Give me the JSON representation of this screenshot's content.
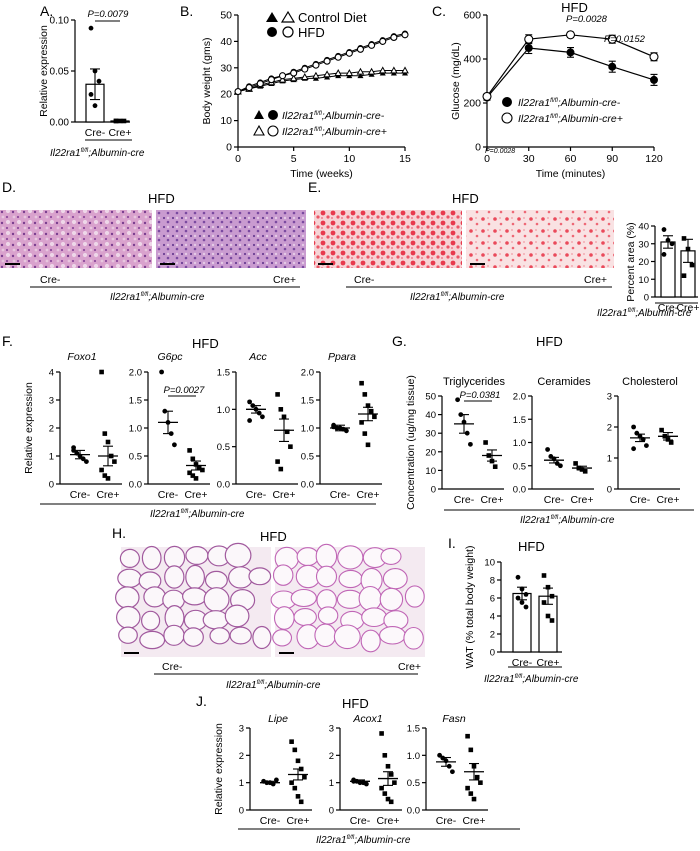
{
  "panel_letters": {
    "A": "A.",
    "B": "B.",
    "C": "C.",
    "D": "D.",
    "E": "E.",
    "F": "F.",
    "G": "G.",
    "H": "H.",
    "I": "I.",
    "J": "J."
  },
  "genotype_label": "Il22ra1",
  "genotype_sup": "fl/fl",
  "genotype_suffix": ";Albumin-cre",
  "genotype_cre_minus": ";Albumin-cre-",
  "genotype_cre_plus": ";Albumin-cre+",
  "hfd": "HFD",
  "cre_minus": "Cre-",
  "cre_plus": "Cre+",
  "chart_data": [
    {
      "id": "A",
      "type": "bar",
      "ylabel": "Relative expression",
      "ylim": [
        0,
        0.1
      ],
      "yticks": [
        "0.00",
        "0.05",
        "0.10"
      ],
      "categories": [
        "Cre-",
        "Cre+"
      ],
      "values": [
        0.037,
        0.001
      ],
      "sem": [
        0.015,
        0.0005
      ],
      "points": [
        [
          0.092,
          0.05,
          0.04,
          0.027,
          0.016
        ],
        [
          0.001,
          0.001,
          0.001,
          0.001
        ]
      ],
      "annotation": "P=0.0079"
    },
    {
      "id": "B",
      "type": "line",
      "xlabel": "Time (weeks)",
      "ylabel": "Body weight (gms)",
      "xlim": [
        0,
        15
      ],
      "ylim": [
        0,
        50
      ],
      "xticks": [
        "0",
        "5",
        "10",
        "15"
      ],
      "yticks": [
        "0",
        "10",
        "20",
        "30",
        "40",
        "50"
      ],
      "legend": [
        "Control Diet",
        "HFD"
      ],
      "series": [
        {
          "marker": "triangle-filled",
          "x": [
            0,
            1,
            2,
            3,
            4,
            5,
            6,
            7,
            8,
            9,
            10,
            11,
            12,
            13,
            14,
            15
          ],
          "y": [
            21,
            22,
            23,
            24,
            25,
            25.5,
            26,
            26,
            26.5,
            27,
            27,
            27,
            27.5,
            28,
            28,
            28
          ]
        },
        {
          "marker": "triangle-open",
          "x": [
            0,
            1,
            2,
            3,
            4,
            5,
            6,
            7,
            8,
            9,
            10,
            11,
            12,
            13,
            14,
            15
          ],
          "y": [
            21,
            22,
            23.5,
            24.5,
            25.5,
            26,
            26.5,
            27,
            27.5,
            28,
            28,
            28.5,
            28.5,
            29,
            29,
            29
          ]
        },
        {
          "marker": "circle-filled",
          "x": [
            0,
            1,
            2,
            3,
            4,
            5,
            6,
            7,
            8,
            9,
            10,
            11,
            12,
            13,
            14,
            15
          ],
          "y": [
            21,
            23,
            24.5,
            26,
            27,
            28.5,
            30,
            31.5,
            33,
            34.5,
            36,
            37.5,
            39,
            40.5,
            42,
            43
          ]
        },
        {
          "marker": "circle-open",
          "x": [
            0,
            1,
            2,
            3,
            4,
            5,
            6,
            7,
            8,
            9,
            10,
            11,
            12,
            13,
            14,
            15
          ],
          "y": [
            21,
            22.5,
            24,
            25.5,
            27,
            28,
            29.5,
            31,
            32.5,
            34,
            35.5,
            37,
            38.5,
            40,
            41.5,
            42.5
          ]
        }
      ]
    },
    {
      "id": "C",
      "type": "line",
      "title": "HFD",
      "xlabel": "Time (minutes)",
      "ylabel": "Glucose (mg/dL)",
      "xlim": [
        0,
        120
      ],
      "ylim": [
        0,
        600
      ],
      "xticks": [
        "0",
        "30",
        "60",
        "90",
        "120"
      ],
      "yticks": [
        "0",
        "200",
        "400",
        "600"
      ],
      "series": [
        {
          "name": "Cre-",
          "marker": "circle-filled",
          "x": [
            0,
            30,
            60,
            90,
            120
          ],
          "y": [
            225,
            450,
            430,
            365,
            305
          ],
          "sem": [
            12,
            25,
            22,
            25,
            25
          ]
        },
        {
          "name": "Cre+",
          "marker": "circle-open",
          "x": [
            0,
            30,
            60,
            90,
            120
          ],
          "y": [
            230,
            490,
            510,
            490,
            410
          ],
          "sem": [
            10,
            20,
            12,
            18,
            18
          ]
        }
      ],
      "annotations": [
        "P=0.0028",
        "P=0.0028",
        "P=0.0152"
      ]
    },
    {
      "id": "E_bar",
      "type": "bar",
      "ylabel": "Percent area (%)",
      "ylim": [
        0,
        40
      ],
      "yticks": [
        "0",
        "10",
        "20",
        "30",
        "40"
      ],
      "categories": [
        "Cre-",
        "Cre+"
      ],
      "values": [
        31,
        26
      ],
      "sem": [
        3.5,
        6.5
      ],
      "points": [
        [
          38,
          32,
          30,
          24
        ],
        [
          33,
          27,
          18,
          12
        ]
      ]
    },
    {
      "id": "F",
      "type": "scatter",
      "ylabel": "Relative expression",
      "groups": [
        {
          "gene": "Foxo1",
          "ylim": [
            0,
            4
          ],
          "yticks": [
            "0",
            "1",
            "2",
            "3",
            "4"
          ],
          "means": [
            1.05,
            1.0
          ],
          "sem": [
            0.15,
            0.35
          ],
          "points": [
            [
              1.2,
              1.1,
              1.0,
              0.9,
              0.8,
              1.3
            ],
            [
              4.0,
              1.8,
              1.5,
              1.0,
              0.8,
              0.5,
              0.3,
              0.2
            ]
          ]
        },
        {
          "gene": "G6pc",
          "ylim": [
            0,
            2
          ],
          "yticks": [
            "0.0",
            "0.5",
            "1.0",
            "1.5",
            "2.0"
          ],
          "means": [
            1.1,
            0.33
          ],
          "sem": [
            0.2,
            0.08
          ],
          "points": [
            [
              2.0,
              1.3,
              1.1,
              0.9,
              0.7
            ],
            [
              0.6,
              0.45,
              0.35,
              0.3,
              0.25,
              0.2,
              0.15,
              0.1
            ]
          ],
          "annotation": "P=0.0027"
        },
        {
          "gene": "Acc",
          "ylim": [
            0,
            1.5
          ],
          "yticks": [
            "0.0",
            "0.5",
            "1.0",
            "1.5"
          ],
          "means": [
            1.0,
            0.72
          ],
          "sem": [
            0.05,
            0.15
          ],
          "points": [
            [
              1.1,
              1.05,
              1.0,
              0.95,
              0.9,
              0.85
            ],
            [
              1.2,
              1.0,
              0.9,
              0.7,
              0.5,
              0.3,
              0.2
            ]
          ]
        },
        {
          "gene": "Ppara",
          "ylim": [
            0,
            2
          ],
          "yticks": [
            "0.0",
            "0.5",
            "1.0",
            "1.5",
            "2.0"
          ],
          "means": [
            1.0,
            1.25
          ],
          "sem": [
            0.05,
            0.12
          ],
          "points": [
            [
              1.05,
              1.0,
              1.0,
              0.98,
              0.95,
              1.02
            ],
            [
              1.8,
              1.6,
              1.4,
              1.3,
              1.2,
              1.1,
              0.9,
              0.7
            ]
          ]
        }
      ]
    },
    {
      "id": "G",
      "type": "scatter",
      "title": "HFD",
      "ylabel": "Concentration (ug/mg tissue)",
      "groups": [
        {
          "name": "Triglycerides",
          "ylim": [
            0,
            50
          ],
          "yticks": [
            "0",
            "10",
            "20",
            "30",
            "40",
            "50"
          ],
          "means": [
            35,
            18
          ],
          "sem": [
            5,
            3
          ],
          "points": [
            [
              48,
              40,
              36,
              30,
              24
            ],
            [
              25,
              18,
              15,
              12
            ]
          ],
          "annotation": "P=0.0381"
        },
        {
          "name": "Ceramides",
          "ylim": [
            0,
            2
          ],
          "yticks": [
            "0.0",
            "0.5",
            "1.0",
            "1.5",
            "2.0"
          ],
          "means": [
            0.62,
            0.45
          ],
          "sem": [
            0.06,
            0.04
          ],
          "points": [
            [
              0.85,
              0.7,
              0.65,
              0.55,
              0.5
            ],
            [
              0.55,
              0.45,
              0.42,
              0.38
            ]
          ]
        },
        {
          "name": "Cholesterol",
          "ylim": [
            0,
            3
          ],
          "yticks": [
            "0",
            "1",
            "2",
            "3"
          ],
          "means": [
            1.65,
            1.7
          ],
          "sem": [
            0.12,
            0.12
          ],
          "points": [
            [
              2.0,
              1.8,
              1.7,
              1.6,
              1.4,
              1.3
            ],
            [
              1.9,
              1.7,
              1.6,
              1.5
            ]
          ]
        }
      ]
    },
    {
      "id": "I",
      "type": "bar",
      "title": "HFD",
      "ylabel": "WAT (% total body weight)",
      "ylim": [
        0,
        10
      ],
      "yticks": [
        "0",
        "2",
        "4",
        "6",
        "8",
        "10"
      ],
      "categories": [
        "Cre-",
        "Cre+"
      ],
      "values": [
        6.5,
        6.2
      ],
      "sem": [
        0.7,
        0.9
      ],
      "points": [
        [
          8.3,
          7.0,
          6.4,
          6.0,
          5.5,
          5.0
        ],
        [
          8.5,
          7.2,
          6.2,
          5.5,
          4.0,
          3.5
        ]
      ]
    },
    {
      "id": "J",
      "type": "scatter",
      "title": "HFD",
      "ylabel": "Relative expression",
      "groups": [
        {
          "gene": "Lipe",
          "ylim": [
            0,
            3
          ],
          "yticks": [
            "0",
            "1",
            "2",
            "3"
          ],
          "means": [
            1.0,
            1.3
          ],
          "sem": [
            0.05,
            0.2
          ],
          "points": [
            [
              1.05,
              1.0,
              1.0,
              0.95,
              1.1
            ],
            [
              2.5,
              2.2,
              1.8,
              1.5,
              1.2,
              1.0,
              0.8,
              0.5,
              0.3
            ]
          ]
        },
        {
          "gene": "Acox1",
          "ylim": [
            0,
            3
          ],
          "yticks": [
            "0",
            "1",
            "2",
            "3"
          ],
          "means": [
            1.05,
            1.15
          ],
          "sem": [
            0.05,
            0.25
          ],
          "points": [
            [
              1.1,
              1.05,
              1.0,
              1.0,
              0.95,
              1.05
            ],
            [
              2.8,
              2.0,
              1.6,
              1.3,
              1.0,
              0.8,
              0.6,
              0.4,
              0.3
            ]
          ]
        },
        {
          "gene": "Fasn",
          "ylim": [
            0,
            1.5
          ],
          "yticks": [
            "0.0",
            "0.5",
            "1.0",
            "1.5"
          ],
          "means": [
            0.88,
            0.7
          ],
          "sem": [
            0.08,
            0.15
          ],
          "points": [
            [
              1.0,
              0.95,
              0.9,
              0.8,
              0.7
            ],
            [
              1.35,
              1.1,
              0.8,
              0.6,
              0.5,
              0.4,
              0.3,
              0.2
            ]
          ]
        }
      ]
    }
  ]
}
